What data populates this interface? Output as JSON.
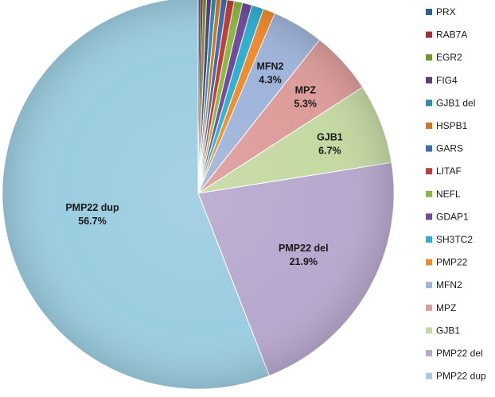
{
  "chart_data": {
    "type": "pie",
    "title": "",
    "legend_position": "right",
    "slices": [
      {
        "label": "PRX",
        "value": 0.2,
        "color": "#2F5F98"
      },
      {
        "label": "RAB7A",
        "value": 0.2,
        "color": "#A2302E"
      },
      {
        "label": "EGR2",
        "value": 0.3,
        "color": "#6E9A2E"
      },
      {
        "label": "FIG4",
        "value": 0.4,
        "color": "#5A3C86"
      },
      {
        "label": "GJB1 del",
        "value": 0.4,
        "color": "#2A8FAA"
      },
      {
        "label": "HSPB1",
        "value": 0.4,
        "color": "#D8741E"
      },
      {
        "label": "GARS",
        "value": 0.5,
        "color": "#3A6DB4"
      },
      {
        "label": "LITAF",
        "value": 0.6,
        "color": "#C23B38"
      },
      {
        "label": "NEFL",
        "value": 0.7,
        "color": "#8CB83E"
      },
      {
        "label": "GDAP1",
        "value": 0.8,
        "color": "#6F4A9E"
      },
      {
        "label": "SH3TC2",
        "value": 1.0,
        "color": "#2DB0D2"
      },
      {
        "label": "PMP22",
        "value": 1.0,
        "color": "#F28A2A"
      },
      {
        "label": "MFN2",
        "value": 4.3,
        "color": "#9FB4DA",
        "data_label": "4.3%"
      },
      {
        "label": "MPZ",
        "value": 5.3,
        "color": "#DC9C9A",
        "data_label": "5.3%"
      },
      {
        "label": "GJB1",
        "value": 6.7,
        "color": "#C5D9A2",
        "data_label": "6.7%"
      },
      {
        "label": "PMP22 del",
        "value": 21.9,
        "color": "#B8A8CE",
        "data_label": "21.9%"
      },
      {
        "label": "PMP22 dup",
        "value": 56.7,
        "color": "#9BCDE0",
        "data_label": "56.7%"
      }
    ]
  }
}
